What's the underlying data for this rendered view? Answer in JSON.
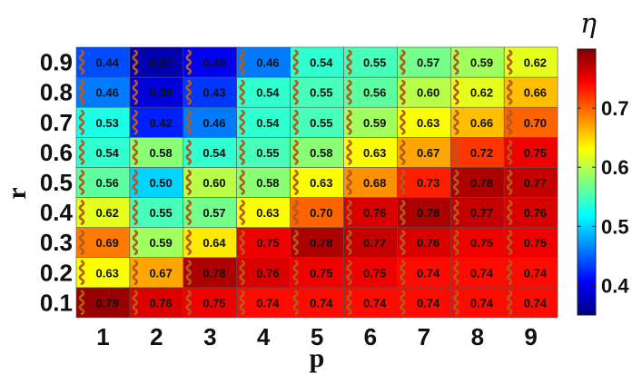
{
  "chart_data": {
    "type": "heatmap",
    "xlabel": "p",
    "ylabel": "r",
    "x": [
      1,
      2,
      3,
      4,
      5,
      6,
      7,
      8,
      9
    ],
    "y": [
      0.1,
      0.2,
      0.3,
      0.4,
      0.5,
      0.6,
      0.7,
      0.8,
      0.9
    ],
    "values": [
      [
        0.79,
        0.76,
        0.75,
        0.74,
        0.74,
        0.74,
        0.74,
        0.74,
        0.74
      ],
      [
        0.63,
        0.67,
        0.78,
        0.76,
        0.75,
        0.75,
        0.74,
        0.74,
        0.74
      ],
      [
        0.69,
        0.59,
        0.64,
        0.75,
        0.78,
        0.77,
        0.76,
        0.75,
        0.75
      ],
      [
        0.62,
        0.55,
        0.57,
        0.63,
        0.7,
        0.76,
        0.78,
        0.77,
        0.76
      ],
      [
        0.56,
        0.5,
        0.6,
        0.58,
        0.63,
        0.68,
        0.73,
        0.78,
        0.77
      ],
      [
        0.54,
        0.58,
        0.54,
        0.55,
        0.58,
        0.63,
        0.67,
        0.72,
        0.75
      ],
      [
        0.53,
        0.42,
        0.46,
        0.54,
        0.55,
        0.59,
        0.63,
        0.66,
        0.7
      ],
      [
        0.46,
        0.39,
        0.43,
        0.54,
        0.55,
        0.56,
        0.6,
        0.62,
        0.66
      ],
      [
        0.44,
        0.37,
        0.4,
        0.46,
        0.54,
        0.55,
        0.57,
        0.59,
        0.62
      ]
    ],
    "x_tick_labels": [
      "1",
      "2",
      "3",
      "4",
      "5",
      "6",
      "7",
      "8",
      "9"
    ],
    "y_tick_labels": [
      "0.1",
      "0.2",
      "0.3",
      "0.4",
      "0.5",
      "0.6",
      "0.7",
      "0.8",
      "0.9"
    ],
    "colorbar": {
      "label": "η",
      "range": [
        0.35,
        0.8
      ],
      "ticks": [
        0.4,
        0.5,
        0.6,
        0.7
      ],
      "tick_labels": [
        "0.4",
        "0.5",
        "0.6",
        "0.7"
      ],
      "colormap": "jet"
    },
    "cell_icon": "polymer-chain-icon",
    "colors": {
      "chain": "#b35a1e",
      "cell_border": "#555555"
    }
  }
}
